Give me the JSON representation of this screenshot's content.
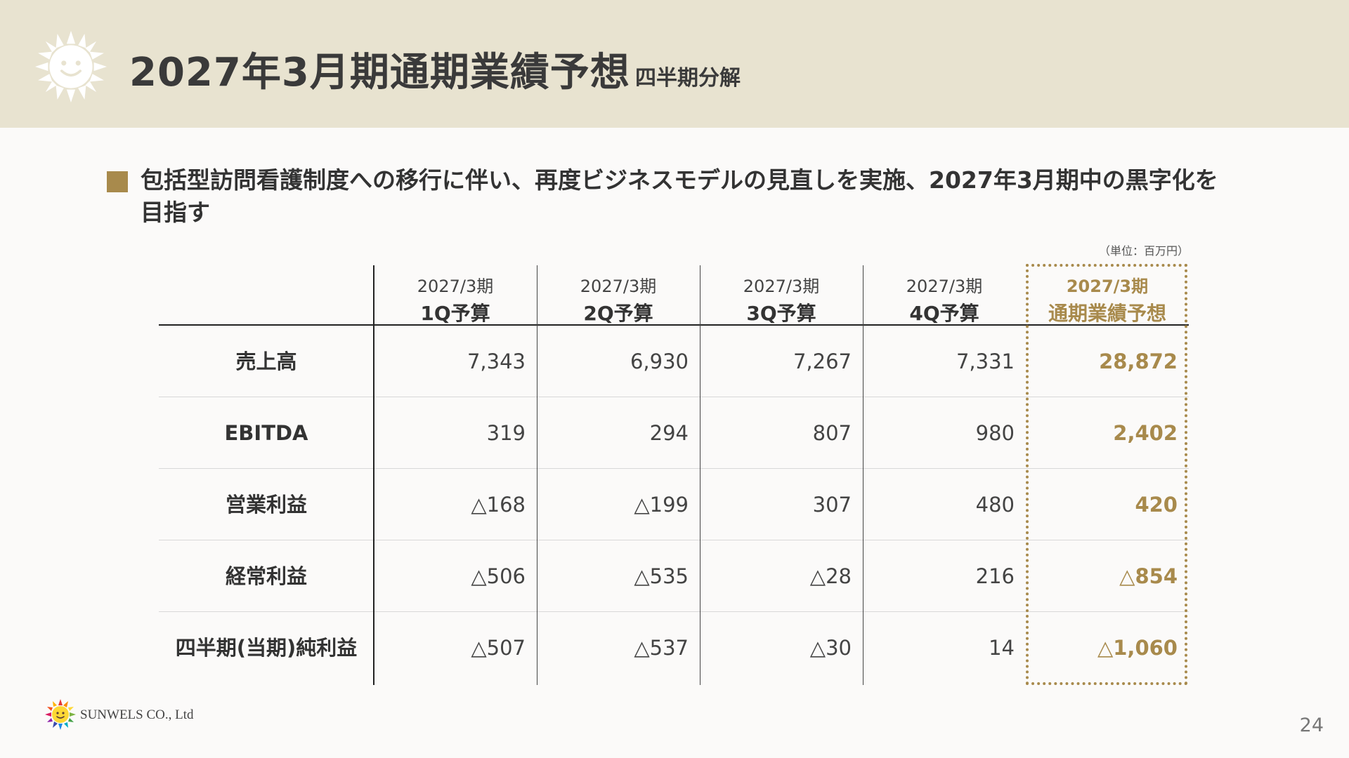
{
  "header": {
    "title": "2027年3月期通期業績予想",
    "subtitle": "四半期分解"
  },
  "lead": {
    "text": "包括型訪問看護制度への移行に伴い、再度ビジネスモデルの見直しを実施、2027年3月期中の黒字化を目指す"
  },
  "table": {
    "unit": "（単位：百万円）",
    "columns": [
      {
        "line1": "2027/3期",
        "line2": "1Q予算"
      },
      {
        "line1": "2027/3期",
        "line2": "2Q予算"
      },
      {
        "line1": "2027/3期",
        "line2": "3Q予算"
      },
      {
        "line1": "2027/3期",
        "line2": "4Q予算"
      },
      {
        "line1": "2027/3期",
        "line2": "通期業績予想"
      }
    ],
    "rows": [
      {
        "label": "売上高",
        "values": [
          "7,343",
          "6,930",
          "7,267",
          "7,331",
          "28,872"
        ]
      },
      {
        "label": "EBITDA",
        "values": [
          "319",
          "294",
          "807",
          "980",
          "2,402"
        ]
      },
      {
        "label": "営業利益",
        "values": [
          "△168",
          "△199",
          "307",
          "480",
          "420"
        ]
      },
      {
        "label": "経常利益",
        "values": [
          "△506",
          "△535",
          "△28",
          "216",
          "△854"
        ]
      },
      {
        "label": "四半期(当期)純利益",
        "values": [
          "△507",
          "△537",
          "△30",
          "14",
          "△1,060"
        ]
      }
    ]
  },
  "footer": {
    "company": "SUNWELS CO., Ltd",
    "page_number": "24"
  },
  "colors": {
    "header_band": "#e8e3d0",
    "accent": "#a88a4c"
  },
  "icons": {
    "header": "sun-face-icon",
    "footer": "sunwels-logo-icon"
  }
}
